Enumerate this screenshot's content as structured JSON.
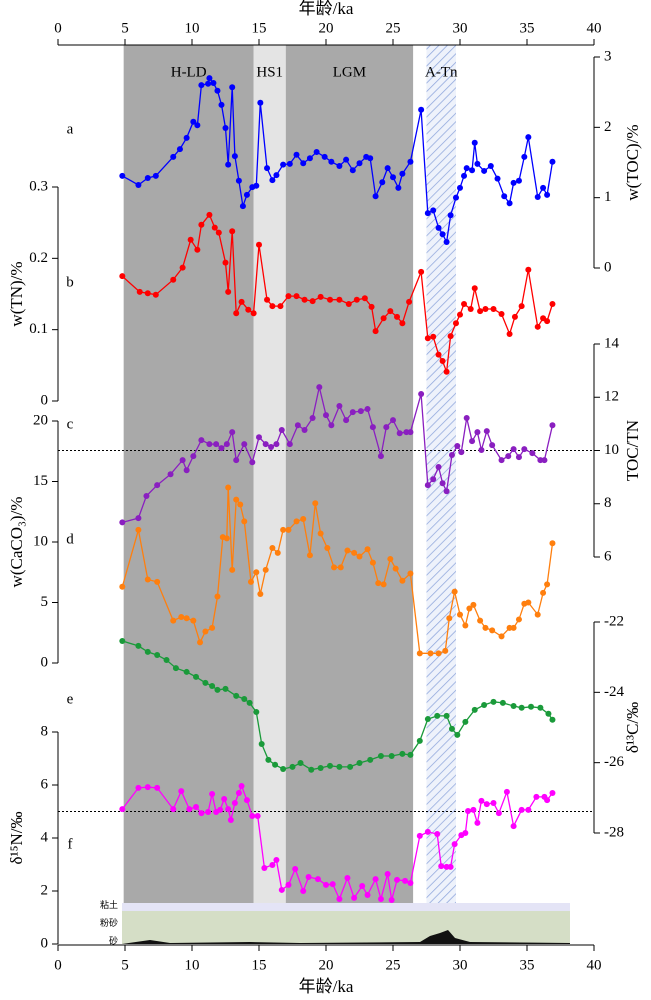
{
  "chart_data": {
    "type": "line",
    "xlabel": "年龄/ka",
    "xlim": [
      0,
      40
    ],
    "xticks": [
      0,
      5,
      10,
      15,
      20,
      25,
      30,
      35,
      40
    ],
    "bands": [
      {
        "label": "H-LD",
        "range": [
          4.9,
          14.6
        ],
        "color": "#a9a9a9",
        "hatch": false
      },
      {
        "label": "HS1",
        "range": [
          14.6,
          17.0
        ],
        "color": "#e4e4e4",
        "hatch": false
      },
      {
        "label": "LGM",
        "range": [
          17.0,
          26.5
        ],
        "color": "#a9a9a9",
        "hatch": false
      },
      {
        "label": "A-Tn",
        "range": [
          27.5,
          29.7
        ],
        "color": "#8fa6dc",
        "hatch": true
      }
    ],
    "grain_size_labels": [
      "粘土",
      "粉砂",
      "砂"
    ],
    "panels": [
      {
        "letter": "a",
        "ylabel": "w(TOC)/%",
        "side": "right",
        "color": "#0000ff",
        "ylim": [
          0,
          3
        ],
        "yticks": [
          0,
          1,
          2,
          3
        ],
        "x": [
          4.8,
          6.0,
          6.7,
          7.3,
          8.6,
          9.1,
          9.6,
          10.1,
          10.4,
          10.7,
          11.2,
          11.3,
          11.6,
          11.9,
          12.2,
          12.5,
          12.7,
          13.0,
          13.2,
          13.5,
          13.8,
          14.1,
          14.5,
          14.8,
          15.1,
          15.6,
          16.0,
          16.3,
          16.8,
          17.3,
          17.8,
          18.3,
          18.8,
          19.3,
          19.9,
          20.4,
          21.0,
          21.5,
          22.0,
          22.5,
          23.0,
          23.3,
          23.7,
          24.2,
          24.6,
          25.0,
          25.4,
          25.7,
          26.3,
          27.1,
          27.6,
          28.0,
          28.4,
          28.7,
          29.0,
          29.3,
          29.7,
          30.0,
          30.3,
          30.5,
          30.9,
          31.1,
          31.3,
          31.8,
          32.3,
          32.8,
          33.3,
          33.7,
          34.0,
          34.4,
          34.8,
          35.1,
          35.8,
          36.2,
          36.5,
          36.9
        ],
        "values": [
          1.31,
          1.18,
          1.28,
          1.31,
          1.58,
          1.69,
          1.85,
          2.08,
          2.03,
          2.6,
          2.62,
          2.7,
          2.63,
          2.52,
          2.32,
          1.99,
          1.47,
          2.57,
          1.59,
          1.24,
          0.88,
          1.04,
          1.15,
          1.17,
          2.35,
          1.42,
          1.25,
          1.32,
          1.47,
          1.48,
          1.61,
          1.49,
          1.56,
          1.65,
          1.58,
          1.51,
          1.45,
          1.54,
          1.39,
          1.49,
          1.58,
          1.56,
          1.02,
          1.22,
          1.42,
          1.29,
          1.14,
          1.34,
          1.51,
          2.25,
          0.78,
          0.82,
          0.57,
          0.48,
          0.37,
          0.75,
          1.0,
          1.14,
          1.31,
          1.42,
          1.39,
          1.78,
          1.48,
          1.38,
          1.45,
          1.27,
          1.02,
          0.92,
          1.21,
          1.24,
          1.58,
          1.86,
          1.01,
          1.14,
          1.04,
          1.51
        ]
      },
      {
        "letter": "b",
        "ylabel": "w(TN)/%",
        "side": "left",
        "color": "#ff0000",
        "ylim": [
          0,
          0.3
        ],
        "yticks": [
          0,
          0.1,
          0.2,
          0.3
        ],
        "x": [
          4.8,
          6.1,
          6.7,
          7.3,
          8.6,
          9.3,
          9.9,
          10.4,
          10.7,
          11.3,
          11.7,
          12.0,
          12.5,
          12.7,
          13.0,
          13.3,
          13.7,
          14.2,
          14.6,
          15.0,
          15.6,
          16.0,
          16.6,
          17.2,
          17.8,
          18.4,
          19.0,
          19.6,
          20.3,
          21.0,
          21.7,
          22.3,
          22.9,
          23.4,
          23.7,
          24.3,
          24.8,
          25.3,
          25.7,
          26.2,
          27.1,
          27.6,
          28.0,
          28.4,
          28.7,
          29.0,
          29.3,
          29.7,
          30.0,
          30.3,
          30.8,
          31.1,
          31.5,
          31.9,
          32.5,
          33.1,
          33.7,
          34.1,
          34.6,
          35.1,
          35.8,
          36.2,
          36.5,
          36.9
        ],
        "values": [
          0.175,
          0.153,
          0.151,
          0.149,
          0.17,
          0.187,
          0.226,
          0.212,
          0.247,
          0.261,
          0.243,
          0.236,
          0.194,
          0.153,
          0.238,
          0.123,
          0.139,
          0.128,
          0.123,
          0.219,
          0.142,
          0.133,
          0.133,
          0.147,
          0.147,
          0.142,
          0.14,
          0.146,
          0.142,
          0.142,
          0.136,
          0.142,
          0.144,
          0.132,
          0.098,
          0.116,
          0.126,
          0.118,
          0.109,
          0.139,
          0.181,
          0.088,
          0.09,
          0.065,
          0.056,
          0.041,
          0.091,
          0.109,
          0.121,
          0.136,
          0.129,
          0.158,
          0.126,
          0.129,
          0.129,
          0.122,
          0.094,
          0.118,
          0.133,
          0.184,
          0.104,
          0.116,
          0.112,
          0.136
        ]
      },
      {
        "letter": "c",
        "ylabel": "TOC/TN",
        "side": "right",
        "color": "#8a1fc0",
        "ylim": [
          6,
          14
        ],
        "yticks": [
          6,
          8,
          10,
          12,
          14
        ],
        "refline": 10,
        "x": [
          4.8,
          6.0,
          6.6,
          7.4,
          8.4,
          9.3,
          9.6,
          10.1,
          10.7,
          11.3,
          11.8,
          12.2,
          12.6,
          13.0,
          13.3,
          13.9,
          14.5,
          15.0,
          15.5,
          15.9,
          16.3,
          16.7,
          17.3,
          17.9,
          18.4,
          19.0,
          19.5,
          20.0,
          20.4,
          21.0,
          21.5,
          22.0,
          22.6,
          23.1,
          23.5,
          24.1,
          24.5,
          25.0,
          25.5,
          26.0,
          26.3,
          27.1,
          27.6,
          28.0,
          28.4,
          28.7,
          29.0,
          29.4,
          29.8,
          30.1,
          30.5,
          30.9,
          31.3,
          31.6,
          32.0,
          32.4,
          33.1,
          33.6,
          34.0,
          34.4,
          34.8,
          35.4,
          36.0,
          36.3,
          36.9
        ],
        "values": [
          7.3,
          7.46,
          8.29,
          8.7,
          9.11,
          9.64,
          9.26,
          9.79,
          10.39,
          10.24,
          10.24,
          10.09,
          10.24,
          10.69,
          9.64,
          10.24,
          9.56,
          10.5,
          10.24,
          10.13,
          10.24,
          10.77,
          10.24,
          10.95,
          10.77,
          11.22,
          12.38,
          11.33,
          10.95,
          11.67,
          11.14,
          11.44,
          11.48,
          11.56,
          10.88,
          9.79,
          10.88,
          11.14,
          10.65,
          10.69,
          10.69,
          12.12,
          8.7,
          8.92,
          9.38,
          8.77,
          8.47,
          9.83,
          10.17,
          9.94,
          11.22,
          10.35,
          10.69,
          10.02,
          10.73,
          10.2,
          9.64,
          9.79,
          10.05,
          9.75,
          10.05,
          9.9,
          9.64,
          9.64,
          10.95
        ]
      },
      {
        "letter": "d",
        "ylabel": "w(CaCO₃)/%",
        "side": "left",
        "color": "#ff7f0e",
        "ylim": [
          0,
          20
        ],
        "yticks": [
          0,
          5,
          10,
          15,
          20
        ],
        "x": [
          4.8,
          6.0,
          6.7,
          7.4,
          8.6,
          9.2,
          9.6,
          10.1,
          10.6,
          11.0,
          11.5,
          11.9,
          12.3,
          12.6,
          12.7,
          13.0,
          13.3,
          13.6,
          13.9,
          14.4,
          14.8,
          15.1,
          15.5,
          16.0,
          16.4,
          16.8,
          17.2,
          17.8,
          18.3,
          18.8,
          19.2,
          19.6,
          20.1,
          20.6,
          21.1,
          21.6,
          22.1,
          22.5,
          23.1,
          23.5,
          23.9,
          24.3,
          24.8,
          25.2,
          25.7,
          26.3,
          27.0,
          27.8,
          28.4,
          28.9,
          29.2,
          29.6,
          30.0,
          30.4,
          30.7,
          31.0,
          31.5,
          31.9,
          32.4,
          33.1,
          33.7,
          34.0,
          34.4,
          34.8,
          35.1,
          35.8,
          36.2,
          36.5,
          36.9
        ],
        "values": [
          6.3,
          11.0,
          6.9,
          6.7,
          3.5,
          3.8,
          3.7,
          3.5,
          1.7,
          2.6,
          2.9,
          5.5,
          10.4,
          10.3,
          14.5,
          7.7,
          13.5,
          13.1,
          11.7,
          6.7,
          7.5,
          5.7,
          7.7,
          9.5,
          9.1,
          11.0,
          11.0,
          11.7,
          11.9,
          8.9,
          13.2,
          10.7,
          9.5,
          7.9,
          7.9,
          9.3,
          9.1,
          8.8,
          9.4,
          8.3,
          6.6,
          6.5,
          8.6,
          7.8,
          6.8,
          7.4,
          0.8,
          0.8,
          0.8,
          1.0,
          3.7,
          5.9,
          4.0,
          3.1,
          4.5,
          4.8,
          3.5,
          2.9,
          2.7,
          2.2,
          2.9,
          2.9,
          3.6,
          4.9,
          5.0,
          4.0,
          5.8,
          6.5,
          9.9
        ]
      },
      {
        "letter": "e",
        "ylabel": "δ¹³C/‰",
        "side": "right",
        "color": "#1a9a3a",
        "ylim": [
          -28,
          -22
        ],
        "yticks": [
          -28,
          -26,
          -24,
          -22
        ],
        "x": [
          4.8,
          6.0,
          6.7,
          7.4,
          8.1,
          8.8,
          9.6,
          10.3,
          11.0,
          11.5,
          11.9,
          12.5,
          13.3,
          13.9,
          14.3,
          14.8,
          15.2,
          15.7,
          16.2,
          16.8,
          17.5,
          18.1,
          18.9,
          19.6,
          20.3,
          21.0,
          21.8,
          22.5,
          23.3,
          24.1,
          24.9,
          25.7,
          26.3,
          27.0,
          27.6,
          28.3,
          29.0,
          29.4,
          29.8,
          30.4,
          31.1,
          31.8,
          32.5,
          33.2,
          34.0,
          34.6,
          35.3,
          36.0,
          36.6,
          36.9
        ],
        "values": [
          -22.54,
          -22.68,
          -22.85,
          -22.94,
          -23.08,
          -23.31,
          -23.42,
          -23.56,
          -23.73,
          -23.82,
          -23.93,
          -23.9,
          -24.1,
          -24.19,
          -24.3,
          -24.56,
          -25.47,
          -25.92,
          -26.06,
          -26.18,
          -26.12,
          -26.01,
          -26.2,
          -26.15,
          -26.09,
          -26.12,
          -26.12,
          -26.01,
          -25.92,
          -25.81,
          -25.81,
          -25.75,
          -25.78,
          -25.38,
          -24.76,
          -24.67,
          -24.67,
          -25.04,
          -25.21,
          -24.84,
          -24.5,
          -24.36,
          -24.27,
          -24.3,
          -24.39,
          -24.44,
          -24.41,
          -24.44,
          -24.61,
          -24.78
        ]
      },
      {
        "letter": "f",
        "ylabel": "δ¹⁵N/‰",
        "side": "left",
        "color": "#ff00ff",
        "ylim": [
          0,
          8
        ],
        "yticks": [
          0,
          2,
          4,
          6,
          8
        ],
        "refline": 5,
        "x": [
          4.8,
          6.0,
          6.7,
          7.4,
          8.6,
          9.2,
          9.8,
          10.3,
          10.7,
          11.2,
          11.5,
          11.8,
          12.1,
          12.4,
          12.7,
          12.9,
          13.2,
          13.5,
          13.7,
          14.1,
          14.5,
          14.9,
          15.4,
          16.0,
          16.3,
          16.7,
          17.2,
          17.7,
          18.3,
          18.7,
          19.4,
          20.0,
          20.5,
          21.0,
          21.6,
          22.1,
          22.7,
          23.1,
          23.7,
          24.1,
          24.6,
          24.9,
          25.3,
          25.9,
          26.3,
          27.0,
          27.6,
          28.3,
          28.6,
          29.0,
          29.3,
          29.6,
          30.1,
          30.4,
          30.6,
          31.0,
          31.3,
          31.6,
          32.0,
          32.5,
          32.9,
          33.5,
          34.0,
          34.6,
          35.1,
          35.7,
          36.3,
          36.5,
          36.9
        ],
        "values": [
          5.09,
          5.89,
          5.92,
          5.89,
          5.09,
          5.77,
          5.09,
          5.17,
          4.94,
          4.98,
          5.66,
          4.98,
          5.06,
          5.47,
          5.09,
          4.68,
          5.32,
          5.7,
          5.96,
          5.43,
          4.83,
          4.83,
          2.87,
          2.98,
          3.17,
          2.04,
          2.23,
          2.83,
          2.0,
          2.53,
          2.45,
          2.23,
          2.26,
          1.7,
          2.49,
          1.74,
          2.19,
          1.85,
          2.45,
          1.7,
          2.64,
          1.66,
          2.42,
          2.38,
          2.3,
          4.08,
          4.23,
          4.15,
          2.94,
          2.91,
          2.91,
          3.77,
          4.11,
          4.19,
          5.02,
          5.06,
          4.57,
          5.4,
          5.28,
          5.32,
          4.94,
          5.74,
          4.45,
          5.06,
          5.06,
          5.55,
          5.55,
          5.43,
          5.7
        ]
      }
    ]
  }
}
